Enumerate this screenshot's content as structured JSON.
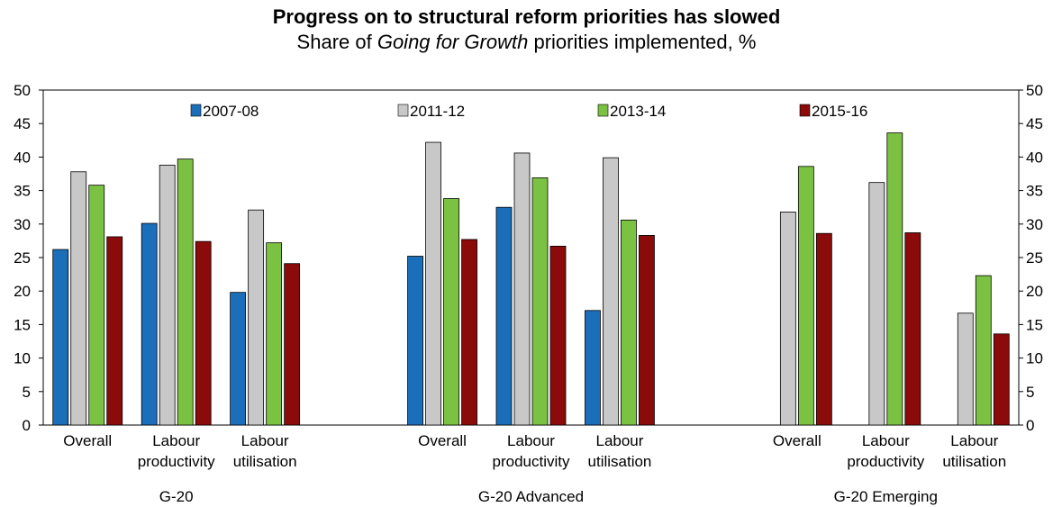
{
  "chart_data": {
    "type": "bar",
    "title": "Progress on to structural reform priorities has slowed",
    "subtitle_parts": [
      "Share of ",
      "Going for Growth",
      " priorities implemented, %"
    ],
    "ylim": [
      0,
      50
    ],
    "yticks": [
      0,
      5,
      10,
      15,
      20,
      25,
      30,
      35,
      40,
      45,
      50
    ],
    "groups": [
      {
        "name": "G-20",
        "categories": [
          [
            "Overall"
          ],
          [
            "Labour",
            "productivity"
          ],
          [
            "Labour",
            "utilisation"
          ]
        ]
      },
      {
        "name": "G-20 Advanced",
        "categories": [
          [
            "Overall"
          ],
          [
            "Labour",
            "productivity"
          ],
          [
            "Labour",
            "utilisation"
          ]
        ]
      },
      {
        "name": "G-20 Emerging",
        "categories": [
          [
            "Overall"
          ],
          [
            "Labour",
            "productivity"
          ],
          [
            "Labour",
            "utilisation"
          ]
        ]
      }
    ],
    "series": [
      {
        "name": "2007-08",
        "color": "#1b6fba",
        "values": [
          26.2,
          30.1,
          19.8,
          25.2,
          32.5,
          17.1,
          null,
          null,
          null
        ]
      },
      {
        "name": "2011-12",
        "color": "#c8c8c8",
        "values": [
          37.8,
          38.8,
          32.1,
          42.2,
          40.6,
          39.9,
          31.8,
          36.2,
          16.7
        ]
      },
      {
        "name": "2013-14",
        "color": "#7cc242",
        "values": [
          35.8,
          39.7,
          27.2,
          33.8,
          36.9,
          30.6,
          38.6,
          43.6,
          22.3
        ]
      },
      {
        "name": "2015-16",
        "color": "#8b0a0a",
        "values": [
          28.1,
          27.4,
          24.1,
          27.7,
          26.7,
          28.3,
          28.6,
          28.7,
          13.6
        ]
      }
    ],
    "legend_position": "top",
    "grid": false
  }
}
